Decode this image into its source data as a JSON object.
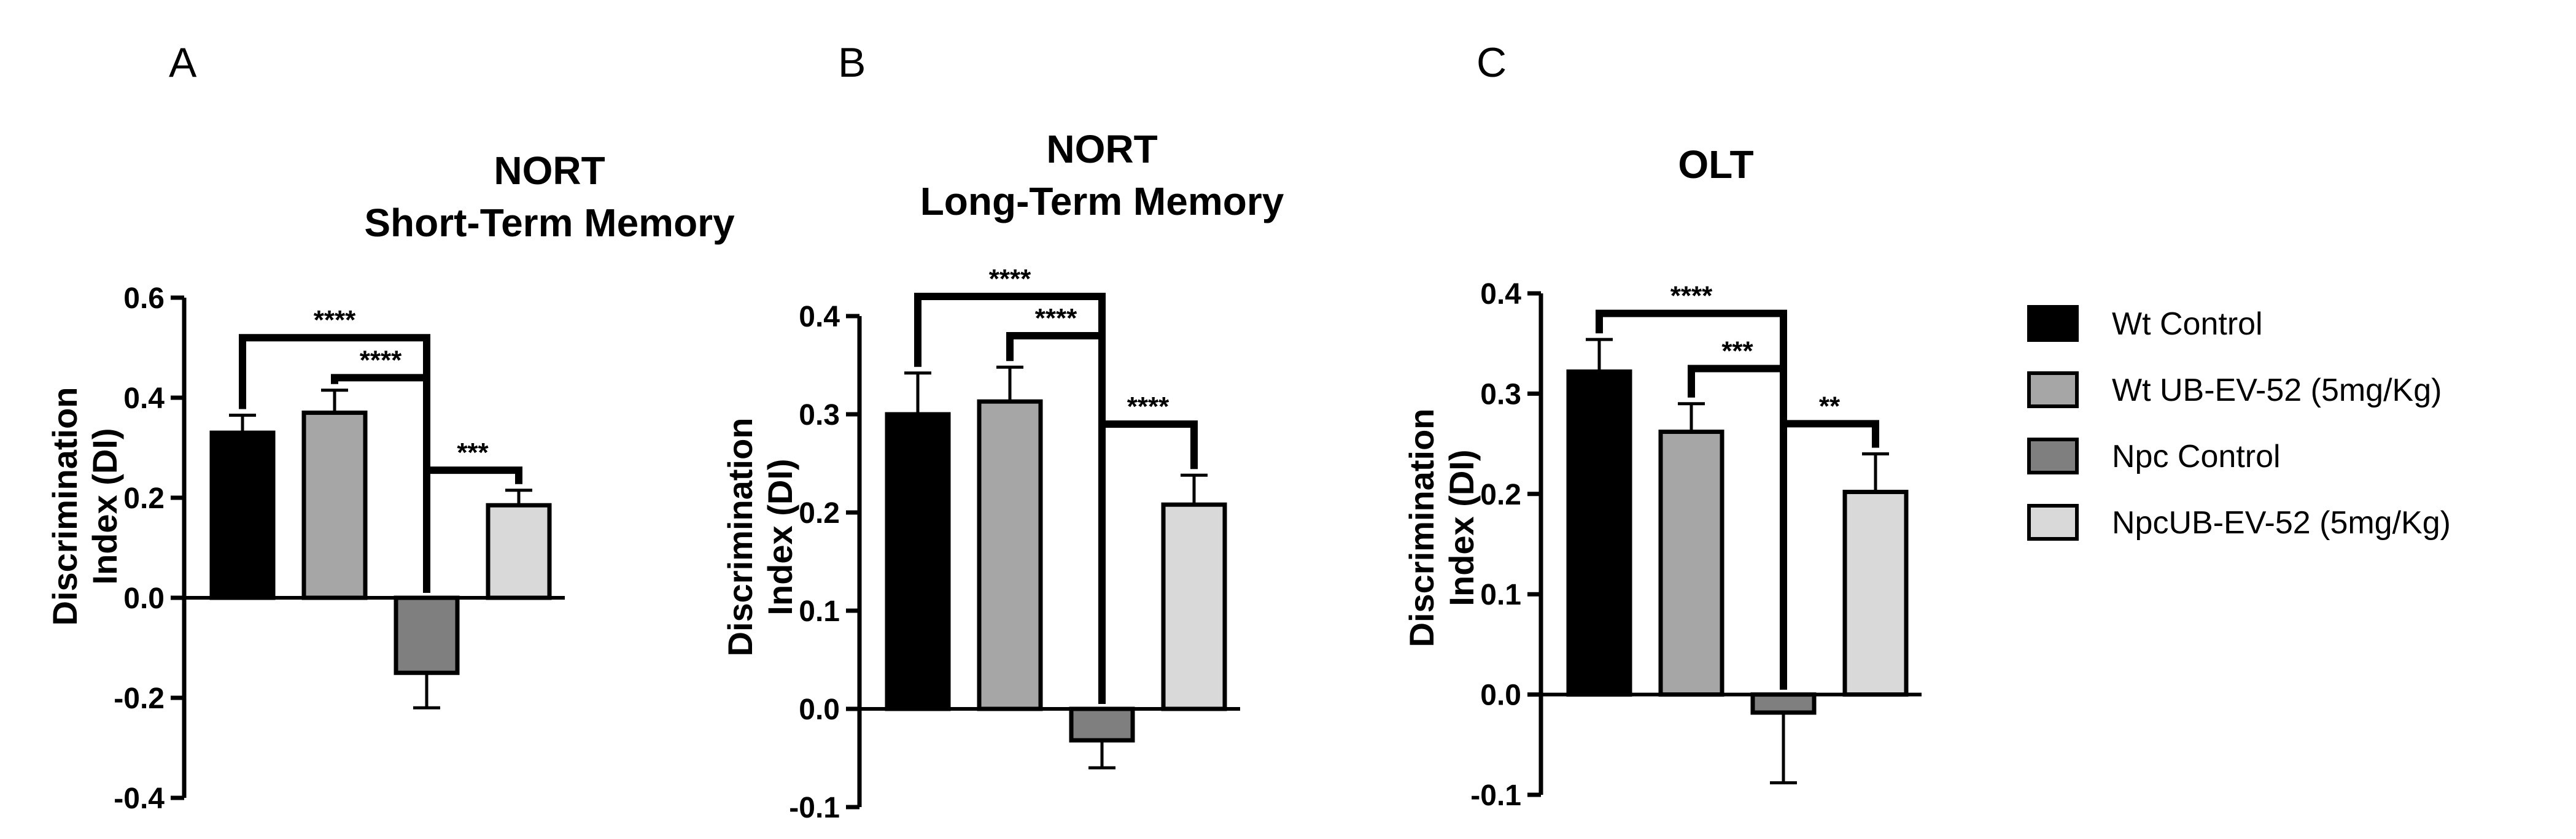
{
  "colors": {
    "wt_control": "#000000",
    "wt_treated": "#a6a6a6",
    "npc_control": "#7f7f7f",
    "npc_treated": "#d9d9d9",
    "outline": "#000000"
  },
  "legend": {
    "items": [
      {
        "label": "Wt Control",
        "color": "#000000"
      },
      {
        "label": "Wt UB-EV-52 (5mg/Kg)",
        "color": "#a6a6a6"
      },
      {
        "label": "Npc Control",
        "color": "#7f7f7f"
      },
      {
        "label": "NpcUB-EV-52 (5mg/Kg)",
        "color": "#d9d9d9"
      }
    ]
  },
  "chart_data": [
    {
      "panel": "A",
      "type": "bar",
      "title_lines": [
        "NORT",
        "Short-Term Memory"
      ],
      "ylabel_lines": [
        "Discrimination",
        "Index (DI)"
      ],
      "ylim": [
        -0.4,
        0.6
      ],
      "yticks": [
        -0.4,
        -0.2,
        0.0,
        0.2,
        0.4,
        0.6
      ],
      "ytick_labels": [
        "-0.4",
        "-0.2",
        "0.0",
        "0.2",
        "0.4",
        "0.6"
      ],
      "categories": [
        "Wt Control",
        "Wt UB-EV-52 (5mg/Kg)",
        "Npc Control",
        "NpcUB-EV-52 (5mg/Kg)"
      ],
      "values": [
        0.33,
        0.37,
        -0.15,
        0.185
      ],
      "errors": [
        0.035,
        0.045,
        0.07,
        0.03
      ],
      "significance": [
        {
          "from": 0,
          "to": 2,
          "label": "****",
          "bar_y": 0.52
        },
        {
          "from": 1,
          "to": 2,
          "label": "****",
          "bar_y": 0.44
        },
        {
          "from": 2,
          "to": 3,
          "label": "***",
          "bar_y": 0.255
        }
      ]
    },
    {
      "panel": "B",
      "type": "bar",
      "title_lines": [
        "NORT",
        "Long-Term Memory"
      ],
      "ylabel_lines": [
        "Discrimination",
        "Index (DI)"
      ],
      "ylim": [
        -0.1,
        0.4
      ],
      "yticks": [
        -0.1,
        0.0,
        0.1,
        0.2,
        0.3,
        0.4
      ],
      "ytick_labels": [
        "-0.1",
        "0.0",
        "0.1",
        "0.2",
        "0.3",
        "0.4"
      ],
      "categories": [
        "Wt Control",
        "Wt UB-EV-52 (5mg/Kg)",
        "Npc Control",
        "NpcUB-EV-52 (5mg/Kg)"
      ],
      "values": [
        0.3,
        0.313,
        -0.032,
        0.208
      ],
      "errors": [
        0.042,
        0.035,
        0.028,
        0.03
      ],
      "significance": [
        {
          "from": 0,
          "to": 2,
          "label": "****",
          "bar_y": 0.42
        },
        {
          "from": 1,
          "to": 2,
          "label": "****",
          "bar_y": 0.38
        },
        {
          "from": 2,
          "to": 3,
          "label": "****",
          "bar_y": 0.29
        }
      ]
    },
    {
      "panel": "C",
      "type": "bar",
      "title_lines": [
        "OLT"
      ],
      "ylabel_lines": [
        "Discrimination",
        "Index (DI)"
      ],
      "ylim": [
        -0.1,
        0.4
      ],
      "yticks": [
        -0.1,
        0.0,
        0.1,
        0.2,
        0.3,
        0.4
      ],
      "ytick_labels": [
        "-0.1",
        "0.0",
        "0.1",
        "0.2",
        "0.3",
        "0.4"
      ],
      "categories": [
        "Wt Control",
        "Wt UB-EV-52 (5mg/Kg)",
        "Npc Control",
        "NpcUB-EV-52 (5mg/Kg)"
      ],
      "values": [
        0.322,
        0.262,
        -0.018,
        0.202
      ],
      "errors": [
        0.032,
        0.028,
        0.07,
        0.038
      ],
      "significance": [
        {
          "from": 0,
          "to": 2,
          "label": "****",
          "bar_y": 0.38
        },
        {
          "from": 1,
          "to": 2,
          "label": "***",
          "bar_y": 0.325
        },
        {
          "from": 2,
          "to": 3,
          "label": "**",
          "bar_y": 0.27
        }
      ]
    }
  ]
}
